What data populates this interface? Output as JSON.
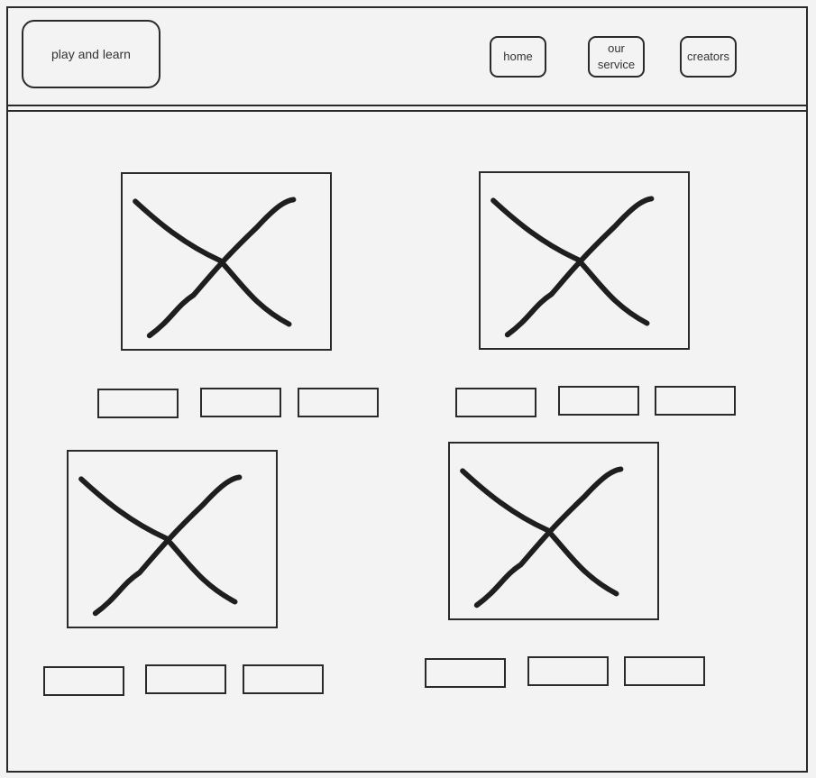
{
  "header": {
    "logo_text": "play and learn",
    "nav": [
      {
        "label": "home"
      },
      {
        "label": "our service"
      },
      {
        "label": "creators"
      }
    ]
  },
  "content": {
    "cards": [
      {
        "image": "image-placeholder-icon",
        "buttons": [
          "",
          "",
          ""
        ]
      },
      {
        "image": "image-placeholder-icon",
        "buttons": [
          "",
          "",
          ""
        ]
      },
      {
        "image": "image-placeholder-icon",
        "buttons": [
          "",
          "",
          ""
        ]
      },
      {
        "image": "image-placeholder-icon",
        "buttons": [
          "",
          "",
          ""
        ]
      }
    ]
  },
  "colors": {
    "stroke": "#1e1e1e",
    "background": "#f3f3f3"
  }
}
